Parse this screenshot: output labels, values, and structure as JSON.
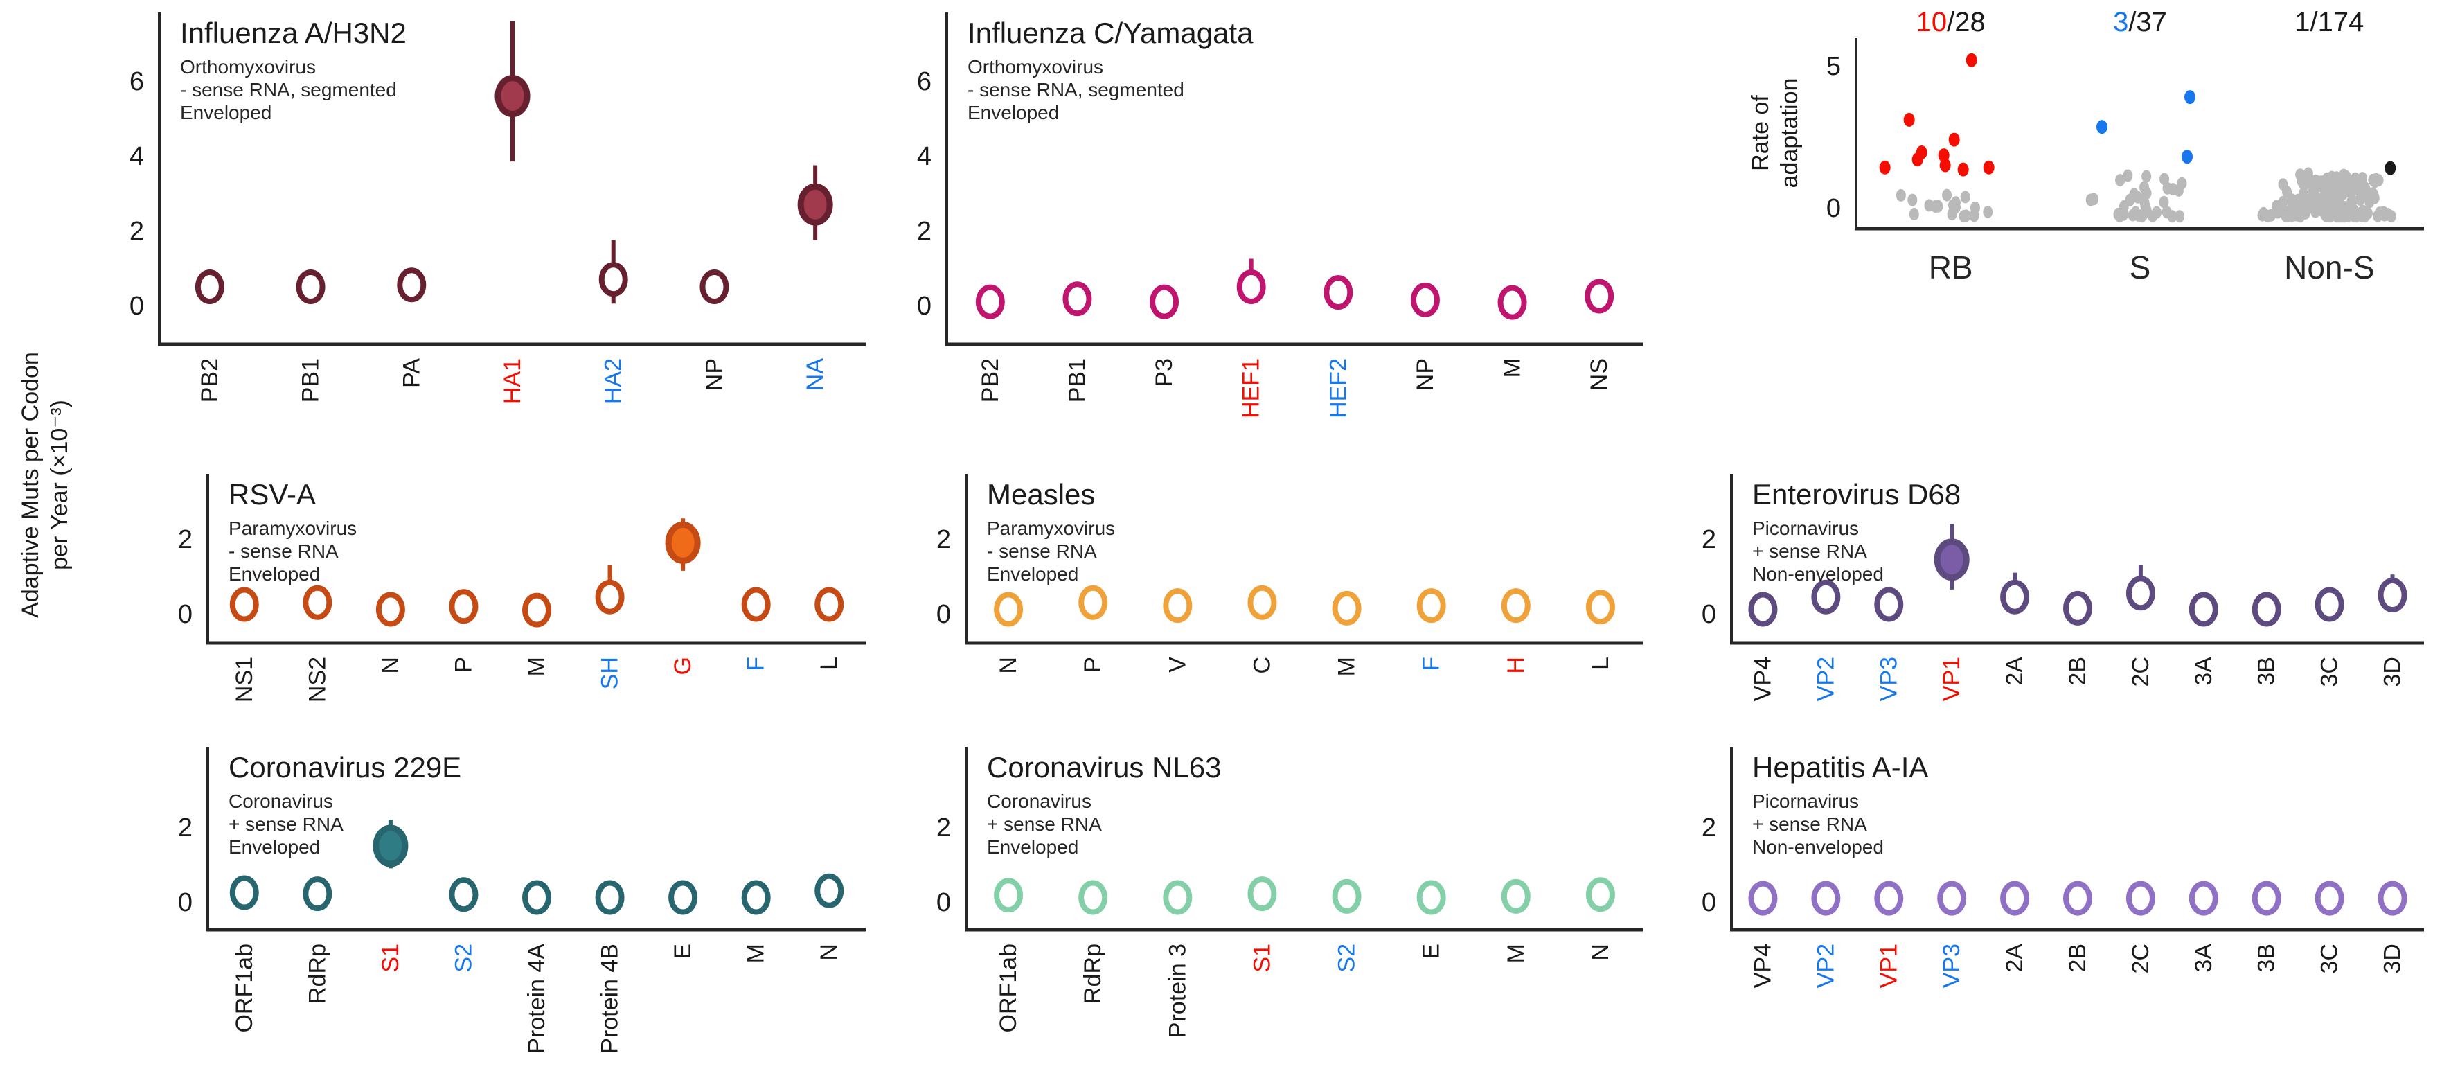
{
  "figure_ylabel_lines": [
    "Adaptive Muts per Codon",
    "per Year (×10⁻³)"
  ],
  "colors": {
    "axis": "#262626",
    "text": "#1a1a1a",
    "label_black": "#1a1a1a",
    "label_red": "#f40d00",
    "label_blue": "#1778ee",
    "gray_point": "#b9b9b9",
    "black_point": "#1a1a1a"
  },
  "chart_data": [
    {
      "key": "influenza-a-h3n2",
      "type": "scatter",
      "kind": "gene-scatter",
      "title": "Influenza A/H3N2",
      "subtitle": [
        "Orthomyxovirus",
        "- sense RNA, segmented",
        "Enveloped"
      ],
      "edge_color": "#67202f",
      "fill_color": "#a23a4e",
      "yticks": [
        0,
        2,
        4,
        6
      ],
      "genes": [
        {
          "name": "PB2",
          "color": "black",
          "value": 0.5,
          "filled": false,
          "ci": null
        },
        {
          "name": "PB1",
          "color": "black",
          "value": 0.5,
          "filled": false,
          "ci": null
        },
        {
          "name": "PA",
          "color": "black",
          "value": 0.55,
          "filled": false,
          "ci": null
        },
        {
          "name": "HA1",
          "color": "red",
          "value": 5.6,
          "filled": true,
          "ci": [
            3.85,
            7.6
          ]
        },
        {
          "name": "HA2",
          "color": "blue",
          "value": 0.7,
          "filled": false,
          "ci": [
            0.05,
            1.75
          ]
        },
        {
          "name": "NP",
          "color": "black",
          "value": 0.5,
          "filled": false,
          "ci": [
            0.15,
            0.9
          ]
        },
        {
          "name": "NA",
          "color": "blue",
          "value": 2.7,
          "filled": true,
          "ci": [
            1.75,
            3.75
          ]
        }
      ]
    },
    {
      "key": "influenza-c-yamagata",
      "type": "scatter",
      "kind": "gene-scatter",
      "title": "Influenza C/Yamagata",
      "subtitle": [
        "Orthomyxovirus",
        "- sense RNA, segmented",
        "Enveloped"
      ],
      "edge_color": "#c0156f",
      "fill_color": "#c0156f",
      "yticks": [
        0,
        2,
        4,
        6
      ],
      "genes": [
        {
          "name": "PB2",
          "color": "black",
          "value": 0.1,
          "filled": false,
          "ci": null
        },
        {
          "name": "PB1",
          "color": "black",
          "value": 0.18,
          "filled": false,
          "ci": null
        },
        {
          "name": "P3",
          "color": "black",
          "value": 0.1,
          "filled": false,
          "ci": null
        },
        {
          "name": "HEF1",
          "color": "red",
          "value": 0.5,
          "filled": false,
          "ci": [
            0.15,
            1.25
          ]
        },
        {
          "name": "HEF2",
          "color": "blue",
          "value": 0.35,
          "filled": false,
          "ci": [
            0.0,
            0.8
          ]
        },
        {
          "name": "NP",
          "color": "black",
          "value": 0.15,
          "filled": false,
          "ci": null
        },
        {
          "name": "M",
          "color": "black",
          "value": 0.08,
          "filled": false,
          "ci": null
        },
        {
          "name": "NS",
          "color": "black",
          "value": 0.25,
          "filled": false,
          "ci": null
        }
      ]
    },
    {
      "key": "rate-of-adaptation",
      "type": "scatter",
      "kind": "strip",
      "ylabel_lines": [
        "Rate of",
        "adaptation"
      ],
      "yticks": [
        0,
        5
      ],
      "groups": [
        {
          "label": "RB",
          "count_highlight": "10",
          "count_rest": "/28",
          "count_color": "#f40d00",
          "highlight_color": "#f40d00",
          "highlight_points": [
            [
              30,
              5.2
            ],
            [
              -60,
              3.1
            ],
            [
              5,
              2.4
            ],
            [
              -42,
              1.95
            ],
            [
              -10,
              1.85
            ],
            [
              -48,
              1.7
            ],
            [
              -95,
              1.42
            ],
            [
              -8,
              1.5
            ],
            [
              55,
              1.42
            ],
            [
              18,
              1.35
            ]
          ],
          "gray": {
            "count": 18,
            "min": -0.3,
            "max": 0.75,
            "spread": 80,
            "seed": 11
          }
        },
        {
          "label": "S",
          "count_highlight": "3",
          "count_rest": "/37",
          "count_color": "#1778ee",
          "highlight_color": "#1778ee",
          "highlight_points": [
            [
              -55,
              2.85
            ],
            [
              72,
              3.9
            ],
            [
              68,
              1.8
            ]
          ],
          "gray": {
            "count": 34,
            "min": -0.3,
            "max": 1.15,
            "spread": 85,
            "seed": 23
          }
        },
        {
          "label": "Non-S",
          "count_highlight": "1",
          "count_rest": "/174",
          "count_color": "#1a1a1a",
          "highlight_color": "#1a1a1a",
          "highlight_points": [
            [
              88,
              1.4
            ]
          ],
          "gray": {
            "count": 173,
            "min": -0.3,
            "max": 1.25,
            "spread": 100,
            "seed": 37
          }
        }
      ]
    },
    {
      "key": "rsv-a",
      "type": "scatter",
      "kind": "gene-scatter",
      "title": "RSV-A",
      "subtitle": [
        "Paramyxovirus",
        "- sense RNA",
        "Enveloped"
      ],
      "edge_color": "#c54a14",
      "fill_color": "#ef6b1a",
      "yticks": [
        0,
        2
      ],
      "genes": [
        {
          "name": "NS1",
          "color": "black",
          "value": 0.25,
          "filled": false,
          "ci": null
        },
        {
          "name": "NS2",
          "color": "black",
          "value": 0.3,
          "filled": false,
          "ci": [
            0.05,
            0.68
          ]
        },
        {
          "name": "N",
          "color": "black",
          "value": 0.12,
          "filled": false,
          "ci": null
        },
        {
          "name": "P",
          "color": "black",
          "value": 0.2,
          "filled": false,
          "ci": null
        },
        {
          "name": "M",
          "color": "black",
          "value": 0.1,
          "filled": false,
          "ci": null
        },
        {
          "name": "SH",
          "color": "blue",
          "value": 0.45,
          "filled": false,
          "ci": [
            0.05,
            1.3
          ]
        },
        {
          "name": "G",
          "color": "red",
          "value": 1.9,
          "filled": true,
          "ci": [
            1.15,
            2.55
          ]
        },
        {
          "name": "F",
          "color": "blue",
          "value": 0.25,
          "filled": false,
          "ci": null
        },
        {
          "name": "L",
          "color": "black",
          "value": 0.25,
          "filled": false,
          "ci": null
        }
      ]
    },
    {
      "key": "measles",
      "type": "scatter",
      "kind": "gene-scatter",
      "title": "Measles",
      "subtitle": [
        "Paramyxovirus",
        "- sense RNA",
        "Enveloped"
      ],
      "edge_color": "#f0a23a",
      "fill_color": "#f0a23a",
      "yticks": [
        0,
        2
      ],
      "genes": [
        {
          "name": "N",
          "color": "black",
          "value": 0.12,
          "filled": false,
          "ci": null
        },
        {
          "name": "P",
          "color": "black",
          "value": 0.3,
          "filled": false,
          "ci": null
        },
        {
          "name": "V",
          "color": "black",
          "value": 0.22,
          "filled": false,
          "ci": null
        },
        {
          "name": "C",
          "color": "black",
          "value": 0.3,
          "filled": false,
          "ci": null
        },
        {
          "name": "M",
          "color": "black",
          "value": 0.15,
          "filled": false,
          "ci": null
        },
        {
          "name": "F",
          "color": "blue",
          "value": 0.22,
          "filled": false,
          "ci": null
        },
        {
          "name": "H",
          "color": "red",
          "value": 0.22,
          "filled": false,
          "ci": null
        },
        {
          "name": "L",
          "color": "black",
          "value": 0.18,
          "filled": false,
          "ci": null
        }
      ]
    },
    {
      "key": "enterovirus-d68",
      "type": "scatter",
      "kind": "gene-scatter",
      "title": "Enterovirus D68",
      "subtitle": [
        "Picornavirus",
        "+ sense RNA",
        "Non-enveloped"
      ],
      "edge_color": "#5d4b80",
      "fill_color": "#7a5da6",
      "yticks": [
        0,
        2
      ],
      "genes": [
        {
          "name": "VP4",
          "color": "black",
          "value": 0.12,
          "filled": false,
          "ci": null
        },
        {
          "name": "VP2",
          "color": "blue",
          "value": 0.45,
          "filled": false,
          "ci": [
            0.15,
            0.8
          ]
        },
        {
          "name": "VP3",
          "color": "blue",
          "value": 0.25,
          "filled": false,
          "ci": [
            0.05,
            0.6
          ]
        },
        {
          "name": "VP1",
          "color": "red",
          "value": 1.45,
          "filled": true,
          "ci": [
            0.65,
            2.4
          ]
        },
        {
          "name": "2A",
          "color": "black",
          "value": 0.45,
          "filled": false,
          "ci": [
            0.15,
            1.1
          ]
        },
        {
          "name": "2B",
          "color": "black",
          "value": 0.15,
          "filled": false,
          "ci": null
        },
        {
          "name": "2C",
          "color": "black",
          "value": 0.55,
          "filled": false,
          "ci": [
            0.25,
            1.3
          ]
        },
        {
          "name": "3A",
          "color": "black",
          "value": 0.12,
          "filled": false,
          "ci": null
        },
        {
          "name": "3B",
          "color": "black",
          "value": 0.12,
          "filled": false,
          "ci": null
        },
        {
          "name": "3C",
          "color": "black",
          "value": 0.25,
          "filled": false,
          "ci": null
        },
        {
          "name": "3D",
          "color": "black",
          "value": 0.5,
          "filled": false,
          "ci": [
            0.25,
            1.05
          ]
        }
      ]
    },
    {
      "key": "coronavirus-229e",
      "type": "scatter",
      "kind": "gene-scatter",
      "title": "Coronavirus 229E",
      "subtitle": [
        "Coronavirus",
        "+ sense RNA",
        "Enveloped"
      ],
      "edge_color": "#27666e",
      "fill_color": "#2f7c85",
      "yticks": [
        0,
        2
      ],
      "genes": [
        {
          "name": "ORF1ab",
          "color": "black",
          "value": 0.25,
          "filled": false,
          "ci": null
        },
        {
          "name": "RdRp",
          "color": "black",
          "value": 0.22,
          "filled": false,
          "ci": null
        },
        {
          "name": "S1",
          "color": "red",
          "value": 1.5,
          "filled": true,
          "ci": [
            0.9,
            2.2
          ]
        },
        {
          "name": "S2",
          "color": "blue",
          "value": 0.2,
          "filled": false,
          "ci": null
        },
        {
          "name": "Protein 4A",
          "color": "black",
          "value": 0.12,
          "filled": false,
          "ci": null
        },
        {
          "name": "Protein 4B",
          "color": "black",
          "value": 0.12,
          "filled": false,
          "ci": null
        },
        {
          "name": "E",
          "color": "black",
          "value": 0.12,
          "filled": false,
          "ci": null
        },
        {
          "name": "M",
          "color": "black",
          "value": 0.12,
          "filled": false,
          "ci": null
        },
        {
          "name": "N",
          "color": "black",
          "value": 0.3,
          "filled": false,
          "ci": null
        }
      ]
    },
    {
      "key": "coronavirus-nl63",
      "type": "scatter",
      "kind": "gene-scatter",
      "title": "Coronavirus NL63",
      "subtitle": [
        "Coronavirus",
        "+ sense RNA",
        "Enveloped"
      ],
      "edge_color": "#82cfa8",
      "fill_color": "#82cfa8",
      "yticks": [
        0,
        2
      ],
      "genes": [
        {
          "name": "ORF1ab",
          "color": "black",
          "value": 0.18,
          "filled": false,
          "ci": null
        },
        {
          "name": "RdRp",
          "color": "black",
          "value": 0.12,
          "filled": false,
          "ci": null
        },
        {
          "name": "Protein 3",
          "color": "black",
          "value": 0.12,
          "filled": false,
          "ci": null
        },
        {
          "name": "S1",
          "color": "red",
          "value": 0.22,
          "filled": false,
          "ci": null
        },
        {
          "name": "S2",
          "color": "blue",
          "value": 0.15,
          "filled": false,
          "ci": null
        },
        {
          "name": "E",
          "color": "black",
          "value": 0.12,
          "filled": false,
          "ci": null
        },
        {
          "name": "M",
          "color": "black",
          "value": 0.15,
          "filled": false,
          "ci": null
        },
        {
          "name": "N",
          "color": "black",
          "value": 0.2,
          "filled": false,
          "ci": null
        }
      ]
    },
    {
      "key": "hepatitis-a-ia",
      "type": "scatter",
      "kind": "gene-scatter",
      "title": "Hepatitis A-IA",
      "subtitle": [
        "Picornavirus",
        "+ sense RNA",
        "Non-enveloped"
      ],
      "edge_color": "#9070c5",
      "fill_color": "#9070c5",
      "yticks": [
        0,
        2
      ],
      "genes": [
        {
          "name": "VP4",
          "color": "black",
          "value": 0.1,
          "filled": false,
          "ci": null
        },
        {
          "name": "VP2",
          "color": "blue",
          "value": 0.1,
          "filled": false,
          "ci": null
        },
        {
          "name": "VP1",
          "color": "red",
          "value": 0.1,
          "filled": false,
          "ci": null
        },
        {
          "name": "VP3",
          "color": "blue",
          "value": 0.1,
          "filled": false,
          "ci": null
        },
        {
          "name": "2A",
          "color": "black",
          "value": 0.1,
          "filled": false,
          "ci": null
        },
        {
          "name": "2B",
          "color": "black",
          "value": 0.1,
          "filled": false,
          "ci": null
        },
        {
          "name": "2C",
          "color": "black",
          "value": 0.1,
          "filled": false,
          "ci": null
        },
        {
          "name": "3A",
          "color": "black",
          "value": 0.1,
          "filled": false,
          "ci": null
        },
        {
          "name": "3B",
          "color": "black",
          "value": 0.1,
          "filled": false,
          "ci": null
        },
        {
          "name": "3C",
          "color": "black",
          "value": 0.1,
          "filled": false,
          "ci": null
        },
        {
          "name": "3D",
          "color": "black",
          "value": 0.1,
          "filled": false,
          "ci": null
        }
      ]
    }
  ]
}
